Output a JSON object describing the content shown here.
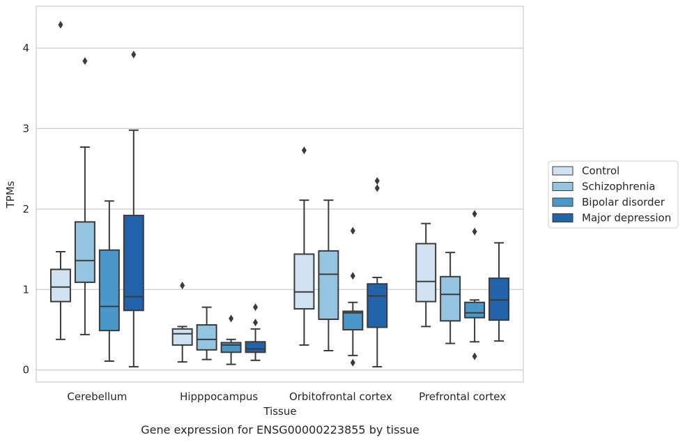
{
  "caption": "Gene expression for ENSG00000223855 by tissue",
  "chart_data": {
    "type": "box",
    "xlabel": "Tissue",
    "ylabel": "TPMs",
    "ylim": [
      -0.15,
      4.52
    ],
    "yticks": [
      0,
      1,
      2,
      3,
      4
    ],
    "grid": "horizontal",
    "legend_placement": "right",
    "categories": [
      "Cerebellum",
      "Hipppocampus",
      "Orbitofrontal cortex",
      "Prefrontal cortex"
    ],
    "series": [
      {
        "name": "Control",
        "color": "#d0e1f2",
        "boxes": [
          {
            "whislo": 0.38,
            "q1": 0.85,
            "med": 1.03,
            "q3": 1.25,
            "whishi": 1.47,
            "fliers": [
              4.29
            ]
          },
          {
            "whislo": 0.1,
            "q1": 0.31,
            "med": 0.45,
            "q3": 0.51,
            "whishi": 0.54,
            "fliers": [
              1.05
            ]
          },
          {
            "whislo": 0.31,
            "q1": 0.76,
            "med": 0.97,
            "q3": 1.44,
            "whishi": 2.11,
            "fliers": [
              2.73
            ]
          },
          {
            "whislo": 0.54,
            "q1": 0.85,
            "med": 1.1,
            "q3": 1.57,
            "whishi": 1.82,
            "fliers": []
          }
        ]
      },
      {
        "name": "Schizophrenia",
        "color": "#94c4df",
        "boxes": [
          {
            "whislo": 0.44,
            "q1": 1.09,
            "med": 1.36,
            "q3": 1.84,
            "whishi": 2.77,
            "fliers": [
              3.84
            ]
          },
          {
            "whislo": 0.13,
            "q1": 0.25,
            "med": 0.38,
            "q3": 0.56,
            "whishi": 0.78,
            "fliers": []
          },
          {
            "whislo": 0.24,
            "q1": 0.63,
            "med": 1.19,
            "q3": 1.48,
            "whishi": 2.11,
            "fliers": []
          },
          {
            "whislo": 0.33,
            "q1": 0.61,
            "med": 0.94,
            "q3": 1.16,
            "whishi": 1.46,
            "fliers": []
          }
        ]
      },
      {
        "name": "Bipolar disorder",
        "color": "#4a98c9",
        "boxes": [
          {
            "whislo": 0.11,
            "q1": 0.49,
            "med": 0.79,
            "q3": 1.49,
            "whishi": 2.1,
            "fliers": []
          },
          {
            "whislo": 0.07,
            "q1": 0.22,
            "med": 0.31,
            "q3": 0.34,
            "whishi": 0.38,
            "fliers": [
              0.64
            ]
          },
          {
            "whislo": 0.18,
            "q1": 0.5,
            "med": 0.71,
            "q3": 0.73,
            "whishi": 0.84,
            "fliers": [
              1.17,
              1.73,
              0.09
            ]
          },
          {
            "whislo": 0.35,
            "q1": 0.65,
            "med": 0.71,
            "q3": 0.84,
            "whishi": 0.87,
            "fliers": [
              1.94,
              1.72,
              0.17
            ]
          }
        ]
      },
      {
        "name": "Major depression",
        "color": "#2164ab",
        "boxes": [
          {
            "whislo": 0.04,
            "q1": 0.74,
            "med": 0.91,
            "q3": 1.92,
            "whishi": 2.98,
            "fliers": [
              3.92
            ]
          },
          {
            "whislo": 0.12,
            "q1": 0.22,
            "med": 0.26,
            "q3": 0.35,
            "whishi": 0.51,
            "fliers": [
              0.78,
              0.59
            ]
          },
          {
            "whislo": 0.04,
            "q1": 0.53,
            "med": 0.92,
            "q3": 1.07,
            "whishi": 1.15,
            "fliers": [
              2.35,
              2.26
            ]
          },
          {
            "whislo": 0.36,
            "q1": 0.62,
            "med": 0.87,
            "q3": 1.14,
            "whishi": 1.58,
            "fliers": []
          }
        ]
      }
    ]
  }
}
